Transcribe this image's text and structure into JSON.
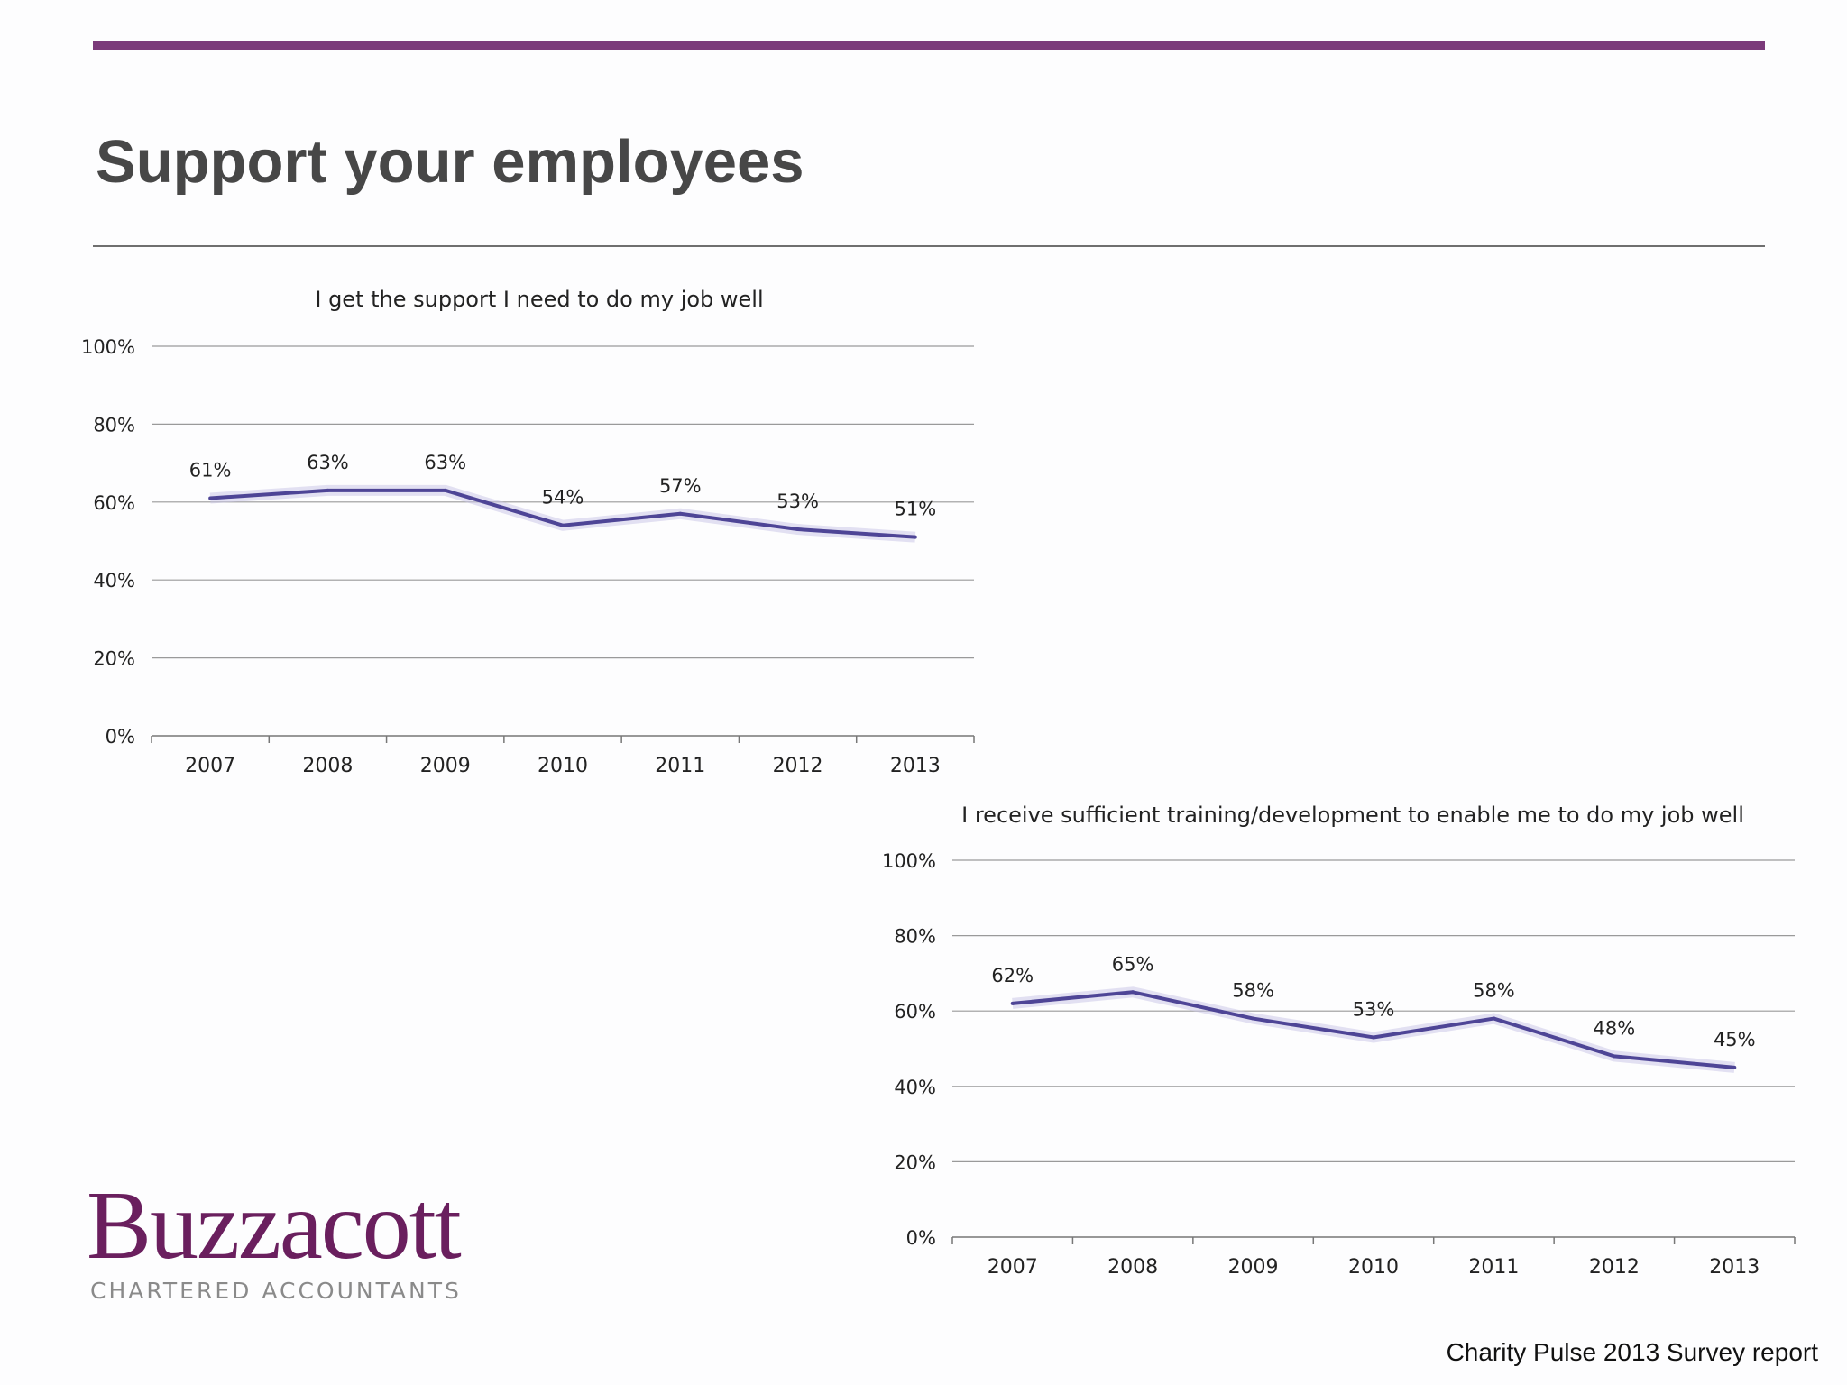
{
  "slide": {
    "title": "Support your employees",
    "footer": "Charity Pulse 2013 Survey report",
    "accent_color": "#7b3a7a",
    "line_color": "#4e4596"
  },
  "logo": {
    "name": "Buzzacott",
    "tagline": "CHARTERED ACCOUNTANTS",
    "color": "#6a1f5e"
  },
  "chart_data": [
    {
      "type": "line",
      "title": "I get the support I need to do my job well",
      "categories": [
        "2007",
        "2008",
        "2009",
        "2010",
        "2011",
        "2012",
        "2013"
      ],
      "series": [
        {
          "values": [
            61,
            63,
            63,
            54,
            57,
            53,
            51
          ]
        }
      ],
      "data_labels": [
        "61%",
        "63%",
        "63%",
        "54%",
        "57%",
        "53%",
        "51%"
      ],
      "y_ticks": [
        "0%",
        "20%",
        "40%",
        "60%",
        "80%",
        "100%"
      ],
      "ylim": [
        0,
        100
      ],
      "grid": true
    },
    {
      "type": "line",
      "title": "I receive sufficient training/development to enable me to do my job well",
      "categories": [
        "2007",
        "2008",
        "2009",
        "2010",
        "2011",
        "2012",
        "2013"
      ],
      "series": [
        {
          "values": [
            62,
            65,
            58,
            53,
            58,
            48,
            45
          ]
        }
      ],
      "data_labels": [
        "62%",
        "65%",
        "58%",
        "53%",
        "58%",
        "48%",
        "45%"
      ],
      "y_ticks": [
        "0%",
        "20%",
        "40%",
        "60%",
        "80%",
        "100%"
      ],
      "ylim": [
        0,
        100
      ],
      "grid": true
    }
  ]
}
